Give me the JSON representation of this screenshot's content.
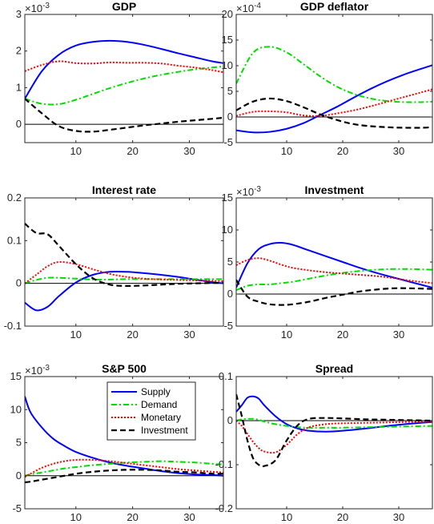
{
  "colors": {
    "supply": "#0000ff",
    "demand": "#00dd00",
    "monetary": "#ff0000",
    "investment": "#000000",
    "axes": "#262626",
    "zero_line": "#000000"
  },
  "legend": {
    "entries": [
      "Supply",
      "Demand",
      "Monetary",
      "Investment"
    ]
  },
  "chart_data": [
    {
      "type": "line",
      "title": "GDP",
      "exponent": "×10^-3",
      "exp_base": "×10",
      "exp_power": "-3",
      "xlim": [
        1,
        36
      ],
      "ylim": [
        -0.5,
        3
      ],
      "xticks": [
        10,
        20,
        30
      ],
      "yticks": [
        0,
        1,
        2,
        3
      ],
      "x": [
        1,
        4,
        7,
        10,
        13,
        16,
        19,
        22,
        25,
        28,
        31,
        34,
        36
      ],
      "series": [
        {
          "name": "Supply",
          "values": [
            0.7,
            1.45,
            1.9,
            2.15,
            2.25,
            2.28,
            2.25,
            2.17,
            2.06,
            1.94,
            1.83,
            1.72,
            1.67
          ]
        },
        {
          "name": "Demand",
          "values": [
            0.7,
            0.56,
            0.55,
            0.67,
            0.83,
            0.99,
            1.13,
            1.25,
            1.35,
            1.43,
            1.5,
            1.55,
            1.58
          ]
        },
        {
          "name": "Monetary",
          "values": [
            1.45,
            1.62,
            1.72,
            1.67,
            1.66,
            1.69,
            1.68,
            1.68,
            1.66,
            1.6,
            1.55,
            1.48,
            1.42
          ]
        },
        {
          "name": "Investment",
          "values": [
            0.7,
            0.3,
            -0.05,
            -0.18,
            -0.2,
            -0.15,
            -0.09,
            -0.03,
            0.02,
            0.07,
            0.11,
            0.15,
            0.18
          ]
        }
      ]
    },
    {
      "type": "line",
      "title": "GDP deflator",
      "exponent": "×10^-4",
      "exp_base": "×10",
      "exp_power": "-4",
      "xlim": [
        1,
        36
      ],
      "ylim": [
        -5,
        20
      ],
      "xticks": [
        10,
        20,
        30
      ],
      "yticks": [
        -5,
        0,
        5,
        10,
        15,
        20
      ],
      "x": [
        1,
        4,
        7,
        10,
        13,
        16,
        19,
        22,
        25,
        28,
        31,
        34,
        36
      ],
      "series": [
        {
          "name": "Supply",
          "values": [
            -2.6,
            -3.0,
            -2.9,
            -2.3,
            -1.2,
            0.4,
            2.0,
            3.8,
            5.5,
            7.0,
            8.3,
            9.4,
            10.1
          ]
        },
        {
          "name": "Demand",
          "values": [
            6.5,
            12.5,
            13.7,
            12.6,
            10.3,
            7.9,
            5.9,
            4.5,
            3.6,
            3.1,
            2.9,
            2.9,
            3.0
          ]
        },
        {
          "name": "Monetary",
          "values": [
            0.2,
            1.0,
            1.1,
            0.9,
            0.3,
            0.2,
            0.7,
            1.3,
            2.1,
            3.0,
            3.9,
            4.8,
            5.4
          ]
        },
        {
          "name": "Investment",
          "values": [
            1.3,
            3.0,
            3.6,
            3.1,
            1.9,
            0.5,
            -0.6,
            -1.4,
            -1.8,
            -2.0,
            -2.1,
            -2.1,
            -2.0
          ]
        }
      ]
    },
    {
      "type": "line",
      "title": "Interest rate",
      "exponent": "",
      "exp_base": "",
      "exp_power": "",
      "xlim": [
        1,
        36
      ],
      "ylim": [
        -0.1,
        0.2
      ],
      "xticks": [
        10,
        20,
        30
      ],
      "yticks": [
        -0.1,
        0,
        0.1,
        0.2
      ],
      "yticklabels": [
        "-0.1",
        "0",
        "0.1",
        "0.2"
      ],
      "x": [
        1,
        3,
        5,
        7,
        10,
        13,
        16,
        19,
        22,
        25,
        28,
        31,
        34,
        36
      ],
      "series": [
        {
          "name": "Supply",
          "values": [
            -0.045,
            -0.063,
            -0.055,
            -0.03,
            0.002,
            0.02,
            0.027,
            0.027,
            0.024,
            0.02,
            0.015,
            0.009,
            0.003,
            0.0
          ]
        },
        {
          "name": "Demand",
          "values": [
            0.0,
            0.008,
            0.013,
            0.013,
            0.011,
            0.009,
            0.009,
            0.01,
            0.01,
            0.01,
            0.01,
            0.01,
            0.01,
            0.01
          ]
        },
        {
          "name": "Monetary",
          "values": [
            0.0,
            0.02,
            0.04,
            0.05,
            0.045,
            0.033,
            0.022,
            0.015,
            0.011,
            0.009,
            0.008,
            0.007,
            0.006,
            0.005
          ]
        },
        {
          "name": "Investment",
          "values": [
            0.14,
            0.118,
            0.115,
            0.088,
            0.045,
            0.012,
            -0.003,
            -0.006,
            -0.005,
            -0.003,
            -0.001,
            0.0,
            0.001,
            0.001
          ]
        }
      ]
    },
    {
      "type": "line",
      "title": "Investment",
      "exponent": "×10^-3",
      "exp_base": "×10",
      "exp_power": "-3",
      "xlim": [
        1,
        36
      ],
      "ylim": [
        -5,
        15
      ],
      "xticks": [
        10,
        20,
        30
      ],
      "yticks": [
        -5,
        0,
        5,
        10,
        15
      ],
      "x": [
        1,
        3,
        5,
        7,
        9,
        11,
        14,
        17,
        20,
        23,
        26,
        29,
        32,
        36
      ],
      "series": [
        {
          "name": "Supply",
          "values": [
            1.0,
            4.8,
            7.0,
            7.8,
            8.0,
            7.7,
            6.8,
            5.9,
            5.0,
            4.1,
            3.3,
            2.6,
            1.9,
            1.0
          ]
        },
        {
          "name": "Demand",
          "values": [
            0.6,
            1.3,
            1.5,
            1.5,
            1.7,
            1.9,
            2.4,
            2.9,
            3.3,
            3.6,
            3.8,
            3.9,
            3.9,
            3.8
          ]
        },
        {
          "name": "Monetary",
          "values": [
            4.5,
            5.3,
            5.6,
            5.2,
            4.6,
            4.1,
            3.7,
            3.4,
            3.2,
            3.0,
            2.8,
            2.5,
            2.1,
            1.7
          ]
        },
        {
          "name": "Investment",
          "values": [
            2.2,
            -0.4,
            -1.2,
            -1.6,
            -1.7,
            -1.6,
            -1.2,
            -0.6,
            -0.1,
            0.4,
            0.7,
            0.9,
            0.9,
            0.8
          ]
        }
      ]
    },
    {
      "type": "line",
      "title": "S&P 500",
      "exponent": "×10^-3",
      "exp_base": "×10",
      "exp_power": "-3",
      "xlim": [
        1,
        36
      ],
      "ylim": [
        -5,
        15
      ],
      "xticks": [
        10,
        20,
        30
      ],
      "yticks": [
        -5,
        0,
        5,
        10,
        15
      ],
      "x": [
        1,
        2,
        4,
        6,
        8,
        10,
        13,
        16,
        19,
        22,
        25,
        28,
        31,
        34,
        36
      ],
      "series": [
        {
          "name": "Supply",
          "values": [
            12.0,
            9.6,
            7.3,
            5.6,
            4.5,
            3.6,
            2.7,
            2.0,
            1.5,
            1.1,
            0.7,
            0.4,
            0.2,
            0.1,
            0.0
          ]
        },
        {
          "name": "Demand",
          "values": [
            0.0,
            0.2,
            0.5,
            0.8,
            1.1,
            1.3,
            1.6,
            1.8,
            2.0,
            2.1,
            2.2,
            2.1,
            2.0,
            1.8,
            1.7
          ]
        },
        {
          "name": "Monetary",
          "values": [
            -0.2,
            0.3,
            1.2,
            1.8,
            2.2,
            2.4,
            2.4,
            2.2,
            1.9,
            1.6,
            1.3,
            1.0,
            0.8,
            0.6,
            0.5
          ]
        },
        {
          "name": "Investment",
          "values": [
            -1.0,
            -0.9,
            -0.6,
            -0.3,
            0.0,
            0.3,
            0.6,
            0.8,
            0.9,
            0.9,
            0.8,
            0.6,
            0.5,
            0.3,
            0.3
          ]
        }
      ]
    },
    {
      "type": "line",
      "title": "Spread",
      "exponent": "",
      "exp_base": "",
      "exp_power": "",
      "xlim": [
        1,
        36
      ],
      "ylim": [
        -0.2,
        0.1
      ],
      "xticks": [
        10,
        20,
        30
      ],
      "yticks": [
        -0.2,
        -0.1,
        0,
        0.1
      ],
      "yticklabels": [
        "-0.2",
        "-0.1",
        "0",
        "0.1"
      ],
      "x": [
        1,
        2,
        3,
        4,
        5,
        6,
        8,
        10,
        12,
        14,
        17,
        20,
        24,
        28,
        32,
        36
      ],
      "series": [
        {
          "name": "Supply",
          "values": [
            0.02,
            0.035,
            0.052,
            0.055,
            0.05,
            0.035,
            0.01,
            -0.008,
            -0.018,
            -0.023,
            -0.025,
            -0.023,
            -0.018,
            -0.012,
            -0.007,
            -0.003
          ]
        },
        {
          "name": "Demand",
          "values": [
            0.0,
            0.003,
            0.004,
            0.004,
            0.002,
            -0.002,
            -0.008,
            -0.012,
            -0.015,
            -0.016,
            -0.016,
            -0.016,
            -0.015,
            -0.014,
            -0.013,
            -0.012
          ]
        },
        {
          "name": "Monetary",
          "values": [
            0.0,
            -0.012,
            -0.03,
            -0.048,
            -0.062,
            -0.07,
            -0.072,
            -0.055,
            -0.03,
            -0.015,
            -0.008,
            -0.006,
            -0.005,
            -0.004,
            -0.003,
            -0.002
          ]
        },
        {
          "name": "Investment",
          "values": [
            0.06,
            0.01,
            -0.045,
            -0.085,
            -0.1,
            -0.103,
            -0.09,
            -0.045,
            -0.01,
            0.004,
            0.006,
            0.005,
            0.003,
            0.002,
            0.001,
            0.0
          ]
        }
      ]
    }
  ]
}
